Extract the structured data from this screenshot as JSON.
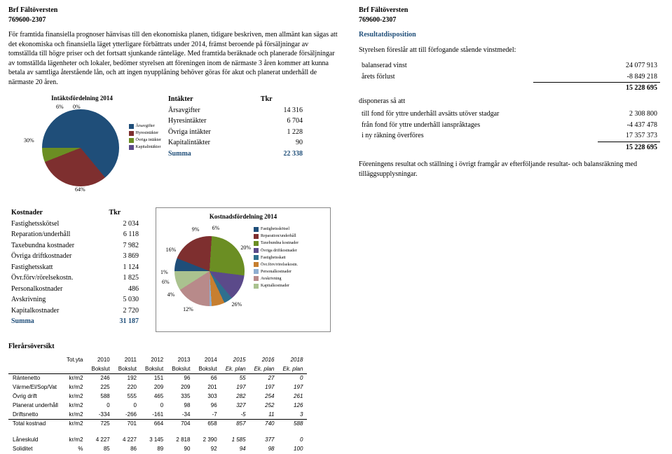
{
  "left": {
    "org_name": "Brf Fältöversten",
    "org_no": "769600-2307",
    "paragraph": "För framtida finansiella prognoser hänvisas till den ekonomiska planen, tidigare beskriven, men allmänt kan sägas att det ekonomiska och finansiella läget ytterligare förbättrats under 2014, främst beroende på försäljningar av tomställda till högre priser och det fortsatt sjunkande ränteläge. Med framtida beräknade och planerade försäljningar av tomställda lägenheter och lokaler, bedömer styrelsen att föreningen inom de närmaste 3 åren kommer att kunna betala av samtliga återstående lån, och att ingen nyupplåning behöver göras för akut och planerat underhåll de närmaste 20 åren.",
    "pie1": {
      "title": "Intäktsfördelning 2014",
      "slices": [
        {
          "label": "Årsavgifter",
          "pct": "64%",
          "color": "#1f4e79"
        },
        {
          "label": "Hyresintäkter",
          "pct": "30%",
          "color": "#7e2f2f"
        },
        {
          "label": "Övriga intäkter",
          "pct": "6%",
          "color": "#6b8e23"
        },
        {
          "label": "Kapitalintäkter",
          "pct": "0%",
          "color": "#5b4a8a"
        }
      ],
      "labels_out": {
        "p64": "64%",
        "p30": "30%",
        "p6": "6%",
        "p0": "0%"
      }
    },
    "intakter": {
      "header": [
        "Intäkter",
        "Tkr"
      ],
      "rows": [
        [
          "Årsavgifter",
          "14 316"
        ],
        [
          "Hyresintäkter",
          "6 704"
        ],
        [
          "Övriga intäkter",
          "1 228"
        ],
        [
          "Kapitalintäkter",
          "90"
        ]
      ],
      "sum": [
        "Summa",
        "22 338"
      ]
    }
  },
  "right": {
    "org_name": "Brf Fältöversten",
    "org_no": "769600-2307",
    "title": "Resultatdisposition",
    "line1": "Styrelsen föreslår att till förfogande stående vinstmedel:",
    "rows1": [
      {
        "label": "balanserad vinst",
        "val": "24 077 913"
      },
      {
        "label": "årets förlust",
        "val": "-8 849 218"
      }
    ],
    "subtot1": "15 228 695",
    "line2": "disponeras så att",
    "rows2": [
      {
        "label": "till fond för yttre underhåll avsätts utöver stadgar",
        "val": "2 308 800"
      },
      {
        "label": "från fond för yttre underhåll ianspråktages",
        "val": "-4 437 478"
      },
      {
        "label": "i ny räkning överföres",
        "val": "17 357 373"
      }
    ],
    "subtot2": "15 228 695",
    "footer": "Föreningens resultat och ställning i övrigt framgår av efterföljande resultat- och balansräkning med tilläggsupplysningar."
  },
  "kostnader": {
    "header": [
      "Kostnader",
      "Tkr"
    ],
    "rows": [
      [
        "Fastighetsskötsel",
        "2 034"
      ],
      [
        "Reparation/underhåll",
        "6 118"
      ],
      [
        "Taxebundna kostnader",
        "7 982"
      ],
      [
        "Övriga driftkostnader",
        "3 869"
      ],
      [
        "Fastighetsskatt",
        "1 124"
      ],
      [
        "Övr.förv/rörelsekostn.",
        "1 825"
      ],
      [
        "Personalkostnader",
        "486"
      ],
      [
        "Avskrivning",
        "5 030"
      ],
      [
        "Kapitalkostnader",
        "2 720"
      ]
    ],
    "sum": [
      "Summa",
      "31 187"
    ]
  },
  "pie2": {
    "title": "Kostnadsfördelning 2014",
    "slices": [
      {
        "label": "Fastighetsskötsel",
        "pct": "6%",
        "color": "#1f4e79"
      },
      {
        "label": "Reparation/underhåll",
        "pct": "20%",
        "color": "#7e2f2f"
      },
      {
        "label": "Taxebundna kostnader",
        "pct": "26%",
        "color": "#6b8e23"
      },
      {
        "label": "Övriga driftkostnader",
        "pct": "12%",
        "color": "#5b4a8a"
      },
      {
        "label": "Fastighetsskatt",
        "pct": "4%",
        "color": "#2f6f8e"
      },
      {
        "label": "Övr.förv/rörelsekostn.",
        "pct": "6%",
        "color": "#c77f30"
      },
      {
        "label": "Personalkostnader",
        "pct": "1%",
        "color": "#8faed1"
      },
      {
        "label": "Avskrivning",
        "pct": "16%",
        "color": "#b88a8a"
      },
      {
        "label": "Kapitalkostnader",
        "pct": "9%",
        "color": "#aac28f"
      }
    ]
  },
  "fleraars": {
    "title": "Flerårsöversikt",
    "cols": [
      "",
      "Tot.yta",
      "2010",
      "2011",
      "2012",
      "2013",
      "2014",
      "2015",
      "2016",
      "2018"
    ],
    "subhdr": [
      "",
      "",
      "Bokslut",
      "Bokslut",
      "Bokslut",
      "Bokslut",
      "Bokslut",
      "Ek. plan",
      "Ek. plan",
      "Ek. plan"
    ],
    "rows": [
      [
        "Räntenetto",
        "kr/m2",
        "246",
        "192",
        "151",
        "96",
        "66",
        "55",
        "27",
        "0"
      ],
      [
        "Värme/El/Sop/Vat",
        "kr/m2",
        "225",
        "220",
        "209",
        "209",
        "201",
        "197",
        "197",
        "197"
      ],
      [
        "Övrig drift",
        "kr/m2",
        "588",
        "555",
        "465",
        "335",
        "303",
        "282",
        "254",
        "261"
      ],
      [
        "Planerat underhåll",
        "kr/m2",
        "0",
        "0",
        "0",
        "98",
        "96",
        "327",
        "252",
        "126"
      ],
      [
        "Driftsnetto",
        "kr/m2",
        "-334",
        "-266",
        "-161",
        "-34",
        "-7",
        "-5",
        "11",
        "3"
      ]
    ],
    "total": [
      "Total kostnad",
      "kr/m2",
      "725",
      "701",
      "664",
      "704",
      "658",
      "857",
      "740",
      "588"
    ],
    "bottom": [
      [
        "Låneskuld",
        "kr/m2",
        "4 227",
        "4 227",
        "3 145",
        "2 818",
        "2 390",
        "1 585",
        "377",
        "0"
      ],
      [
        "Soliditet",
        "%",
        "85",
        "86",
        "89",
        "90",
        "92",
        "94",
        "98",
        "100"
      ]
    ]
  }
}
